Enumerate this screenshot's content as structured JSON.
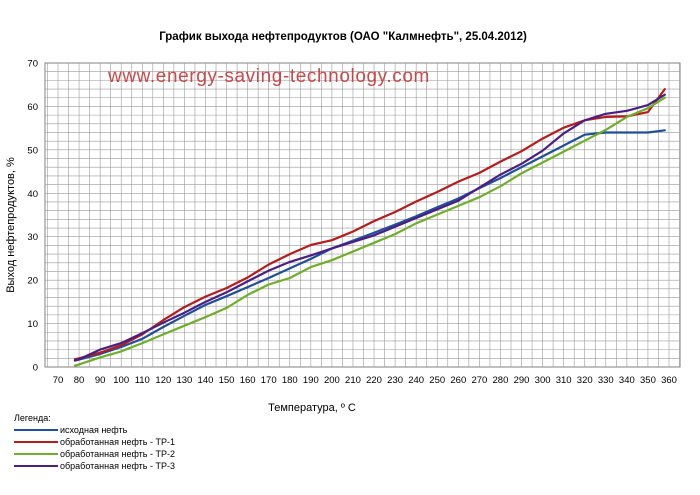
{
  "chart_data": {
    "type": "line",
    "title": "График выхода нефтепродуктов (ОАО \"Калмнефть\", 25.04.2012)",
    "watermark": "www.energy-saving-technology.com",
    "xlabel": "Температура, º С",
    "ylabel": "Выход нефтепродуктов,  %",
    "xlim": [
      70,
      360
    ],
    "ylim": [
      0,
      70
    ],
    "x_ticks": [
      70,
      80,
      90,
      100,
      110,
      120,
      130,
      140,
      150,
      160,
      170,
      180,
      190,
      200,
      210,
      220,
      230,
      240,
      250,
      260,
      270,
      280,
      290,
      300,
      310,
      320,
      330,
      340,
      350,
      360
    ],
    "y_ticks": [
      0,
      10,
      20,
      30,
      40,
      50,
      60,
      70
    ],
    "grid": true,
    "legend_title": "Легенда:",
    "legend_position": "bottom-left",
    "x": [
      78,
      80,
      90,
      100,
      110,
      120,
      130,
      140,
      150,
      160,
      170,
      180,
      190,
      200,
      210,
      220,
      230,
      240,
      250,
      260,
      270,
      280,
      290,
      300,
      310,
      320,
      330,
      340,
      350,
      358
    ],
    "series": [
      {
        "name": "исходная нефть",
        "color": "#1f4e9c",
        "values": [
          1.5,
          1.7,
          3.0,
          4.6,
          6.5,
          9.2,
          11.8,
          14.3,
          16.3,
          18.4,
          20.5,
          22.7,
          24.9,
          27.3,
          29.1,
          30.9,
          32.8,
          34.7,
          36.8,
          38.8,
          41.2,
          43.5,
          46.0,
          48.5,
          51.0,
          53.5,
          54.0,
          54.0,
          54.0,
          54.5
        ]
      },
      {
        "name": "обработанная нефть - ТР-1",
        "color": "#b71c1c",
        "values": [
          1.8,
          2.0,
          3.3,
          5.0,
          7.5,
          10.8,
          13.8,
          16.2,
          18.2,
          20.6,
          23.6,
          26.0,
          28.1,
          29.2,
          31.2,
          33.6,
          35.7,
          38.1,
          40.3,
          42.7,
          44.7,
          47.3,
          49.7,
          52.6,
          55.1,
          56.8,
          57.6,
          57.7,
          58.7,
          64.0
        ]
      },
      {
        "name": "обработанная нефть - ТР-2",
        "color": "#6fae2a",
        "values": [
          0.3,
          0.6,
          2.2,
          3.6,
          5.5,
          7.5,
          9.5,
          11.5,
          13.6,
          16.6,
          19.0,
          20.5,
          23.0,
          24.6,
          26.6,
          28.6,
          30.6,
          33.1,
          35.1,
          37.1,
          39.1,
          41.6,
          44.6,
          47.1,
          49.6,
          52.1,
          54.6,
          57.6,
          59.6,
          62.0
        ]
      },
      {
        "name": "обработанная нефть - ТР-3",
        "color": "#4b1f82",
        "values": [
          1.5,
          1.8,
          4.0,
          5.5,
          7.8,
          10.2,
          12.5,
          15.0,
          17.2,
          19.7,
          22.2,
          24.2,
          25.7,
          27.3,
          28.8,
          30.3,
          32.3,
          34.3,
          36.3,
          38.3,
          41.3,
          44.3,
          46.8,
          49.8,
          53.8,
          56.8,
          58.3,
          59.0,
          60.3,
          62.7
        ]
      }
    ]
  }
}
